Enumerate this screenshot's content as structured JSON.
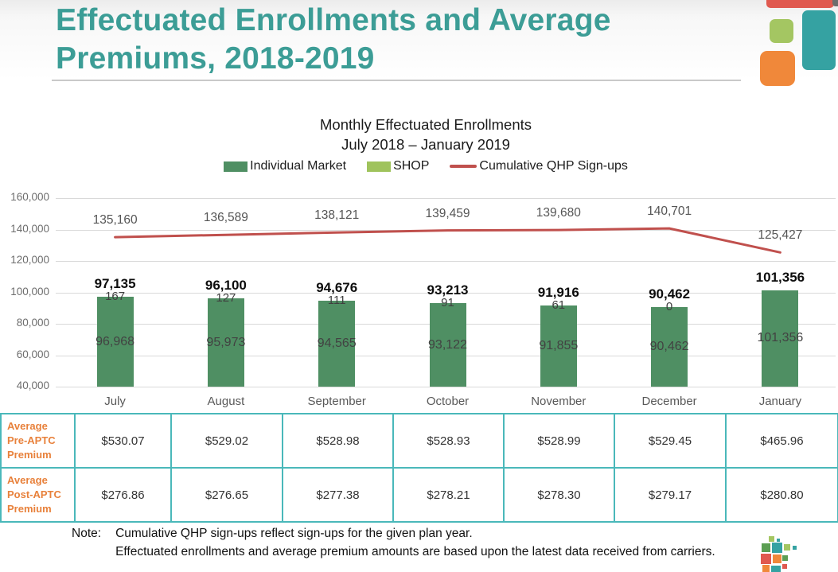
{
  "slide": {
    "title": "Effectuated Enrollments and Average Premiums, 2018-2019",
    "title_line1": "Effectuated Enrollments and Average",
    "title_line2": "Premiums, 2018-2019"
  },
  "chart_data": {
    "type": "bar+line",
    "title": "Monthly Effectuated Enrollments",
    "subtitle": "July 2018 – January 2019",
    "categories": [
      "July",
      "August",
      "September",
      "October",
      "November",
      "December",
      "January"
    ],
    "series": [
      {
        "name": "Individual Market",
        "type": "bar",
        "color": "#4f8f63",
        "values": [
          96968,
          95973,
          94565,
          93122,
          91855,
          90462,
          101356
        ]
      },
      {
        "name": "SHOP",
        "type": "bar",
        "color": "#9fc35c",
        "values": [
          167,
          127,
          111,
          91,
          61,
          0,
          null
        ]
      },
      {
        "name": "Cumulative QHP Sign-ups",
        "type": "line",
        "color": "#c0504d",
        "values": [
          135160,
          136589,
          138121,
          139459,
          139680,
          140701,
          125427
        ]
      }
    ],
    "stacked_bar_totals": [
      97135,
      96100,
      94676,
      93213,
      91916,
      90462,
      101356
    ],
    "ylim": [
      40000,
      160000
    ],
    "ytick_step": 20000,
    "ytick_labels": [
      "40,000",
      "60,000",
      "80,000",
      "100,000",
      "120,000",
      "140,000",
      "160,000"
    ],
    "grid": true,
    "legend_position": "top-center"
  },
  "premium_table": {
    "rows": [
      {
        "label": "Average Pre-APTC Premium",
        "label_lines": [
          "Average",
          "Pre-APTC",
          "Premium"
        ],
        "values": [
          "$530.07",
          "$529.02",
          "$528.98",
          "$528.93",
          "$528.99",
          "$529.45",
          "$465.96"
        ]
      },
      {
        "label": "Average Post-APTC Premium",
        "label_lines": [
          "Average",
          "Post-APTC",
          "Premium"
        ],
        "values": [
          "$276.86",
          "$276.65",
          "$277.38",
          "$278.21",
          "$278.30",
          "$279.17",
          "$280.80"
        ]
      }
    ]
  },
  "note": {
    "label": "Note:",
    "line1": "Cumulative QHP sign-ups reflect sign-ups for the given plan year.",
    "line2": "Effectuated enrollments and average premium amounts are based upon the latest data received from carriers."
  },
  "colors": {
    "title_teal": "#3c9d96",
    "bar_green": "#4f8f63",
    "shop_green": "#9fc35c",
    "line_red": "#c0504d",
    "grid_gray": "#d9d9d9",
    "table_border_teal": "#4ab8ba",
    "table_label_orange": "#e8813b",
    "deco_red": "#e0594f",
    "deco_teal": "#35a2a2",
    "deco_green": "#a4c662",
    "deco_orange": "#f0883a",
    "deco_gray": "#6d6d6d"
  }
}
